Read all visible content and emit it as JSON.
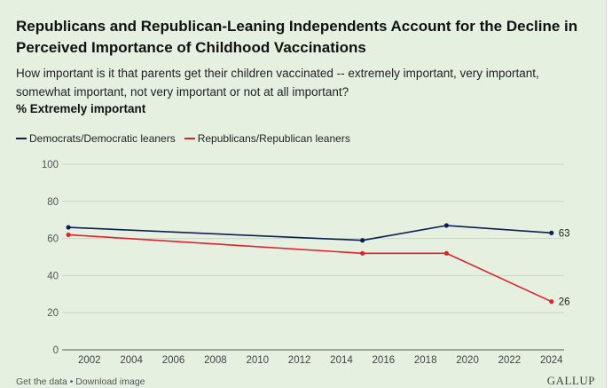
{
  "chart_data": {
    "type": "line",
    "title": "Republicans and Republican-Leaning Independents Account for the Decline in Perceived Importance of Childhood Vaccinations",
    "subtitle": "How important is it that parents get their children vaccinated -- extremely important, very important, somewhat important, not very important or not at all important?",
    "measure_label": "% Extremely important",
    "xlabel": "",
    "ylabel": "",
    "xlim": [
      2000.7,
      2024.6
    ],
    "ylim": [
      0,
      100
    ],
    "x_ticks": [
      2002,
      2004,
      2006,
      2008,
      2010,
      2012,
      2014,
      2016,
      2018,
      2020,
      2022,
      2024
    ],
    "y_ticks": [
      0,
      20,
      40,
      60,
      80,
      100
    ],
    "x_tick_labels": [
      "2002",
      "2004",
      "2006",
      "2008",
      "2010",
      "2012",
      "2014",
      "2016",
      "2018",
      "2020",
      "2022",
      "2024"
    ],
    "y_tick_labels": [
      "0",
      "20",
      "40",
      "60",
      "80",
      "100"
    ],
    "grid": true,
    "legend_position": "top-left",
    "series": [
      {
        "name": "Democrats/Democratic leaners",
        "color": "#0b1f52",
        "x": [
          2001,
          2015,
          2019,
          2024
        ],
        "values": [
          66,
          59,
          67,
          63
        ],
        "end_label": "63"
      },
      {
        "name": "Republicans/Republican leaners",
        "color": "#e0212e",
        "x": [
          2001,
          2015,
          2019,
          2024
        ],
        "values": [
          62,
          52,
          52,
          26
        ],
        "end_label": "26"
      }
    ]
  },
  "footer": {
    "links": "Get the data • Download image",
    "brand": "GALLUP"
  }
}
